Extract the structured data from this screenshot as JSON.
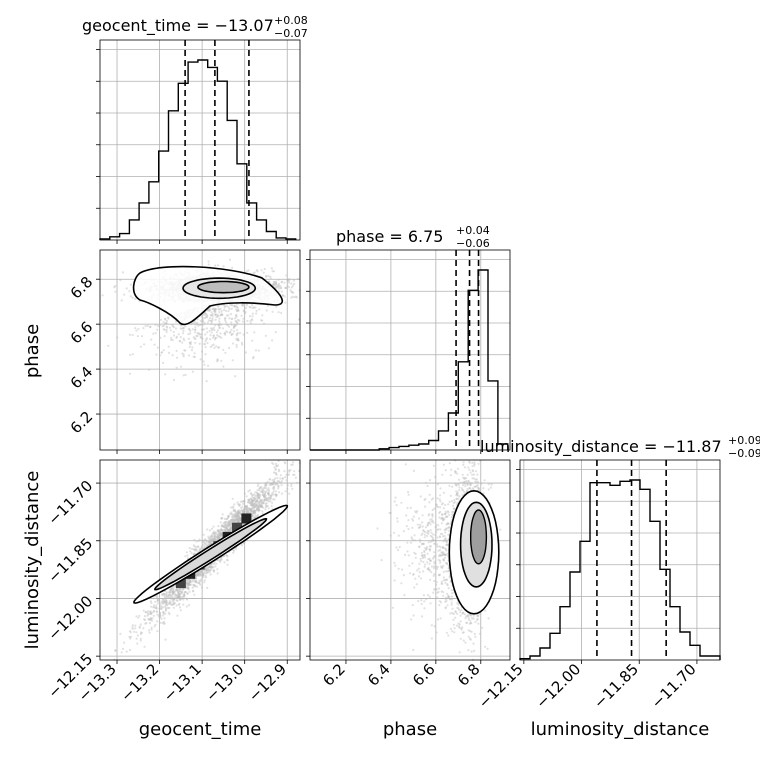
{
  "chart_data": {
    "type": "corner",
    "parameters": [
      "geocent_time",
      "phase",
      "luminosity_distance"
    ],
    "titles": [
      {
        "param": "geocent_time",
        "text": "geocent_time = −13.07",
        "plus": "+0.08",
        "minus": "−0.07"
      },
      {
        "param": "phase",
        "text": "phase = 6.75",
        "plus": "+0.04",
        "minus": "−0.06"
      },
      {
        "param": "luminosity_distance",
        "text": "luminosity_distance = −11.87",
        "plus": "+0.09",
        "minus": "−0.09"
      }
    ],
    "ranges": {
      "geocent_time": [
        -13.34,
        -12.87
      ],
      "phase": [
        6.04,
        6.93
      ],
      "luminosity_distance": [
        -12.16,
        -11.64
      ]
    },
    "ticks": {
      "geocent_time": [
        -13.3,
        -13.2,
        -13.1,
        -13.0,
        -12.9
      ],
      "phase": [
        6.2,
        6.4,
        6.6,
        6.8
      ],
      "luminosity_distance": [
        -12.15,
        -12.0,
        -11.85,
        -11.7
      ]
    },
    "tick_labels": {
      "geocent_time": [
        "−13.3",
        "−13.2",
        "−13.1",
        "−13.0",
        "−12.9"
      ],
      "phase": [
        "6.2",
        "6.4",
        "6.6",
        "6.8"
      ],
      "luminosity_distance": [
        "−12.15",
        "−12.00",
        "−11.85",
        "−11.70"
      ]
    },
    "quantiles": {
      "geocent_time": [
        -13.14,
        -13.07,
        -12.99
      ],
      "phase": [
        6.69,
        6.75,
        6.79
      ],
      "luminosity_distance": [
        -11.96,
        -11.87,
        -11.78
      ]
    },
    "histograms": {
      "geocent_time": {
        "edges": [
          -13.34,
          -13.317,
          -13.294,
          -13.271,
          -13.248,
          -13.225,
          -13.202,
          -13.179,
          -13.156,
          -13.133,
          -13.11,
          -13.087,
          -13.064,
          -13.041,
          -13.018,
          -12.995,
          -12.972,
          -12.949,
          -12.926,
          -12.903,
          -12.88
        ],
        "counts": [
          1,
          3,
          6,
          19,
          35,
          55,
          84,
          122,
          148,
          168,
          170,
          163,
          150,
          113,
          72,
          35,
          19,
          8,
          2,
          1
        ]
      },
      "phase": {
        "edges": [
          6.04,
          6.084,
          6.128,
          6.172,
          6.216,
          6.26,
          6.304,
          6.348,
          6.392,
          6.436,
          6.48,
          6.524,
          6.568,
          6.612,
          6.656,
          6.7,
          6.744,
          6.788,
          6.832,
          6.876,
          6.92
        ],
        "counts": [
          0,
          0,
          0,
          0,
          0,
          0,
          0,
          1,
          2,
          3,
          4,
          5,
          8,
          16,
          31,
          74,
          134,
          151,
          58,
          5
        ]
      },
      "luminosity_distance": {
        "edges": [
          -12.16,
          -12.134,
          -12.108,
          -12.082,
          -12.056,
          -12.03,
          -12.004,
          -11.978,
          -11.952,
          -11.926,
          -11.9,
          -11.874,
          -11.848,
          -11.822,
          -11.796,
          -11.77,
          -11.744,
          -11.718,
          -11.692,
          -11.666,
          -11.64
        ],
        "counts": [
          1,
          3,
          9,
          20,
          40,
          66,
          89,
          133,
          133,
          131,
          134,
          135,
          128,
          104,
          68,
          40,
          21,
          11,
          3,
          3
        ]
      }
    },
    "grid": true,
    "scatter_color": "#bdbdbd",
    "contour_color": "#000000"
  }
}
